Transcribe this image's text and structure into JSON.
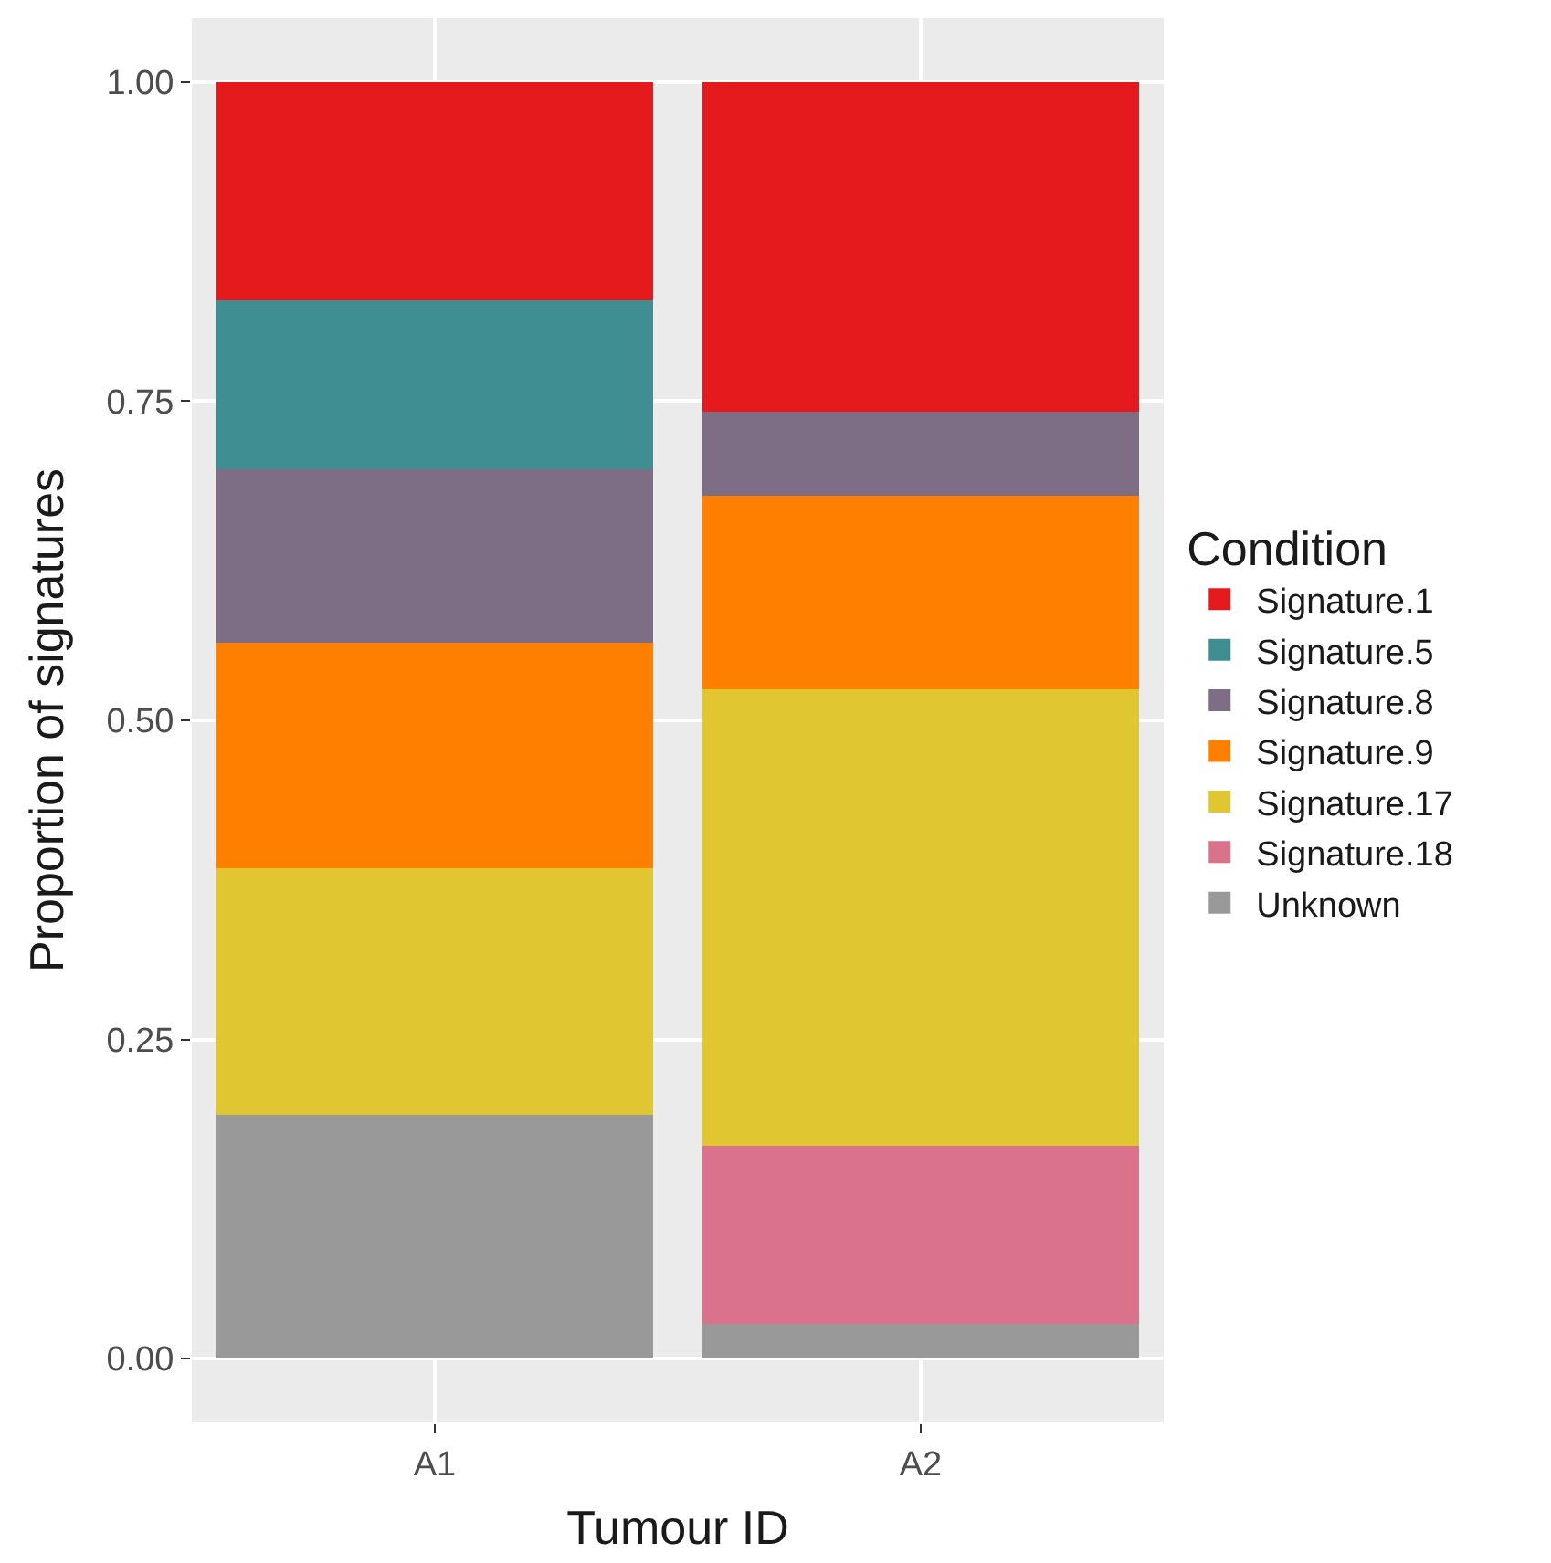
{
  "chart_data": {
    "type": "bar",
    "stacked": true,
    "xlabel": "Tumour ID",
    "ylabel": "Proportion of signatures",
    "legend_title": "Condition",
    "categories": [
      "A1",
      "A2"
    ],
    "series": [
      {
        "name": "Unknown",
        "color": "#999999",
        "values": [
          0.191,
          0.027
        ]
      },
      {
        "name": "Signature.18",
        "color": "#db728c",
        "values": [
          0,
          0.14
        ]
      },
      {
        "name": "Signature.17",
        "color": "#e0c630",
        "values": [
          0.193,
          0.357
        ]
      },
      {
        "name": "Signature.9",
        "color": "#ff7f00",
        "values": [
          0.177,
          0.152
        ]
      },
      {
        "name": "Signature.8",
        "color": "#7d6e85",
        "values": [
          0.136,
          0.066
        ]
      },
      {
        "name": "Signature.5",
        "color": "#3f8e91",
        "values": [
          0.132,
          0
        ]
      },
      {
        "name": "Signature.1",
        "color": "#e41a1c",
        "values": [
          0.171,
          0.258
        ]
      }
    ],
    "ylim": [
      -0.05,
      1.05
    ],
    "yticks": [
      {
        "value": 0,
        "label": "0.00"
      },
      {
        "value": 0.25,
        "label": "0.25"
      },
      {
        "value": 0.5,
        "label": "0.50"
      },
      {
        "value": 0.75,
        "label": "0.75"
      },
      {
        "value": 1,
        "label": "1.00"
      }
    ],
    "grid": true,
    "legend": "right"
  }
}
